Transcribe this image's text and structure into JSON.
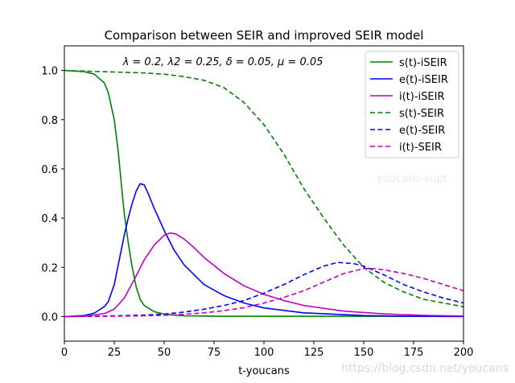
{
  "chart_data": {
    "type": "line",
    "title": "Comparison between SEIR and improved SEIR model",
    "xlabel": "t-youcans",
    "ylabel": "",
    "xlim": [
      0,
      200
    ],
    "ylim": [
      -0.1,
      1.1
    ],
    "xticks": [
      0,
      25,
      50,
      75,
      100,
      125,
      150,
      175,
      200
    ],
    "yticks": [
      0.0,
      0.2,
      0.4,
      0.6,
      0.8,
      1.0
    ],
    "xtick_labels": [
      "0",
      "25",
      "50",
      "75",
      "100",
      "125",
      "150",
      "175",
      "200"
    ],
    "ytick_labels": [
      "0.0",
      "0.2",
      "0.4",
      "0.6",
      "0.8",
      "1.0"
    ],
    "annotation": "λ = 0.2, λ2 = 0.25, δ = 0.05, μ = 0.05",
    "legend_position": "top-right",
    "grid": false,
    "series": [
      {
        "name": "s(t)-iSEIR",
        "color": "#008000",
        "style": "solid",
        "x": [
          0,
          10,
          15,
          20,
          22,
          25,
          27,
          29,
          30,
          32,
          34,
          36,
          38,
          40,
          45,
          50,
          55,
          60,
          80,
          100,
          150,
          200
        ],
        "y": [
          1.0,
          0.995,
          0.985,
          0.95,
          0.91,
          0.8,
          0.67,
          0.5,
          0.42,
          0.3,
          0.2,
          0.12,
          0.07,
          0.045,
          0.02,
          0.01,
          0.006,
          0.003,
          0.001,
          0.001,
          0.001,
          0.001
        ]
      },
      {
        "name": "e(t)-iSEIR",
        "color": "#0000ff",
        "style": "solid",
        "x": [
          0,
          10,
          15,
          20,
          22,
          25,
          28,
          30,
          32,
          34,
          36,
          38,
          40,
          42,
          45,
          50,
          55,
          60,
          70,
          80,
          90,
          100,
          120,
          150,
          175,
          200
        ],
        "y": [
          0.0,
          0.004,
          0.014,
          0.04,
          0.06,
          0.13,
          0.25,
          0.33,
          0.4,
          0.46,
          0.51,
          0.54,
          0.535,
          0.5,
          0.44,
          0.35,
          0.27,
          0.21,
          0.13,
          0.085,
          0.055,
          0.035,
          0.015,
          0.004,
          0.001,
          0.0
        ]
      },
      {
        "name": "i(t)-iSEIR",
        "color": "#bf00bf",
        "style": "solid",
        "x": [
          0,
          10,
          20,
          25,
          30,
          35,
          40,
          45,
          50,
          53,
          56,
          60,
          65,
          70,
          80,
          90,
          100,
          110,
          120,
          140,
          160,
          180,
          200
        ],
        "y": [
          0.0,
          0.001,
          0.012,
          0.03,
          0.075,
          0.15,
          0.23,
          0.29,
          0.33,
          0.34,
          0.335,
          0.315,
          0.28,
          0.24,
          0.175,
          0.125,
          0.09,
          0.065,
          0.045,
          0.022,
          0.011,
          0.005,
          0.002
        ]
      },
      {
        "name": "s(t)-SEIR",
        "color": "#008000",
        "style": "dashed",
        "x": [
          0,
          20,
          40,
          50,
          60,
          70,
          80,
          90,
          100,
          110,
          120,
          130,
          140,
          150,
          160,
          170,
          180,
          190,
          200
        ],
        "y": [
          1.0,
          0.995,
          0.99,
          0.985,
          0.975,
          0.96,
          0.93,
          0.87,
          0.78,
          0.66,
          0.52,
          0.4,
          0.29,
          0.2,
          0.14,
          0.1,
          0.07,
          0.055,
          0.04
        ]
      },
      {
        "name": "e(t)-SEIR",
        "color": "#0000ff",
        "style": "dashed",
        "x": [
          0,
          20,
          40,
          50,
          60,
          70,
          80,
          90,
          100,
          110,
          120,
          130,
          137,
          145,
          150,
          160,
          170,
          180,
          190,
          200
        ],
        "y": [
          0.0,
          0.002,
          0.006,
          0.01,
          0.018,
          0.03,
          0.045,
          0.065,
          0.095,
          0.13,
          0.17,
          0.205,
          0.22,
          0.215,
          0.205,
          0.17,
          0.13,
          0.1,
          0.075,
          0.055
        ]
      },
      {
        "name": "i(t)-SEIR",
        "color": "#bf00bf",
        "style": "dashed",
        "x": [
          0,
          20,
          40,
          50,
          60,
          70,
          80,
          90,
          100,
          110,
          120,
          130,
          140,
          150,
          155,
          160,
          170,
          180,
          190,
          200
        ],
        "y": [
          0.0,
          0.001,
          0.003,
          0.005,
          0.009,
          0.015,
          0.024,
          0.036,
          0.055,
          0.078,
          0.105,
          0.14,
          0.175,
          0.195,
          0.195,
          0.19,
          0.175,
          0.155,
          0.13,
          0.105
        ]
      }
    ]
  },
  "watermark_inner": "youcans-xupt",
  "watermark_outer": "https://blog.csdn.net/youcans"
}
